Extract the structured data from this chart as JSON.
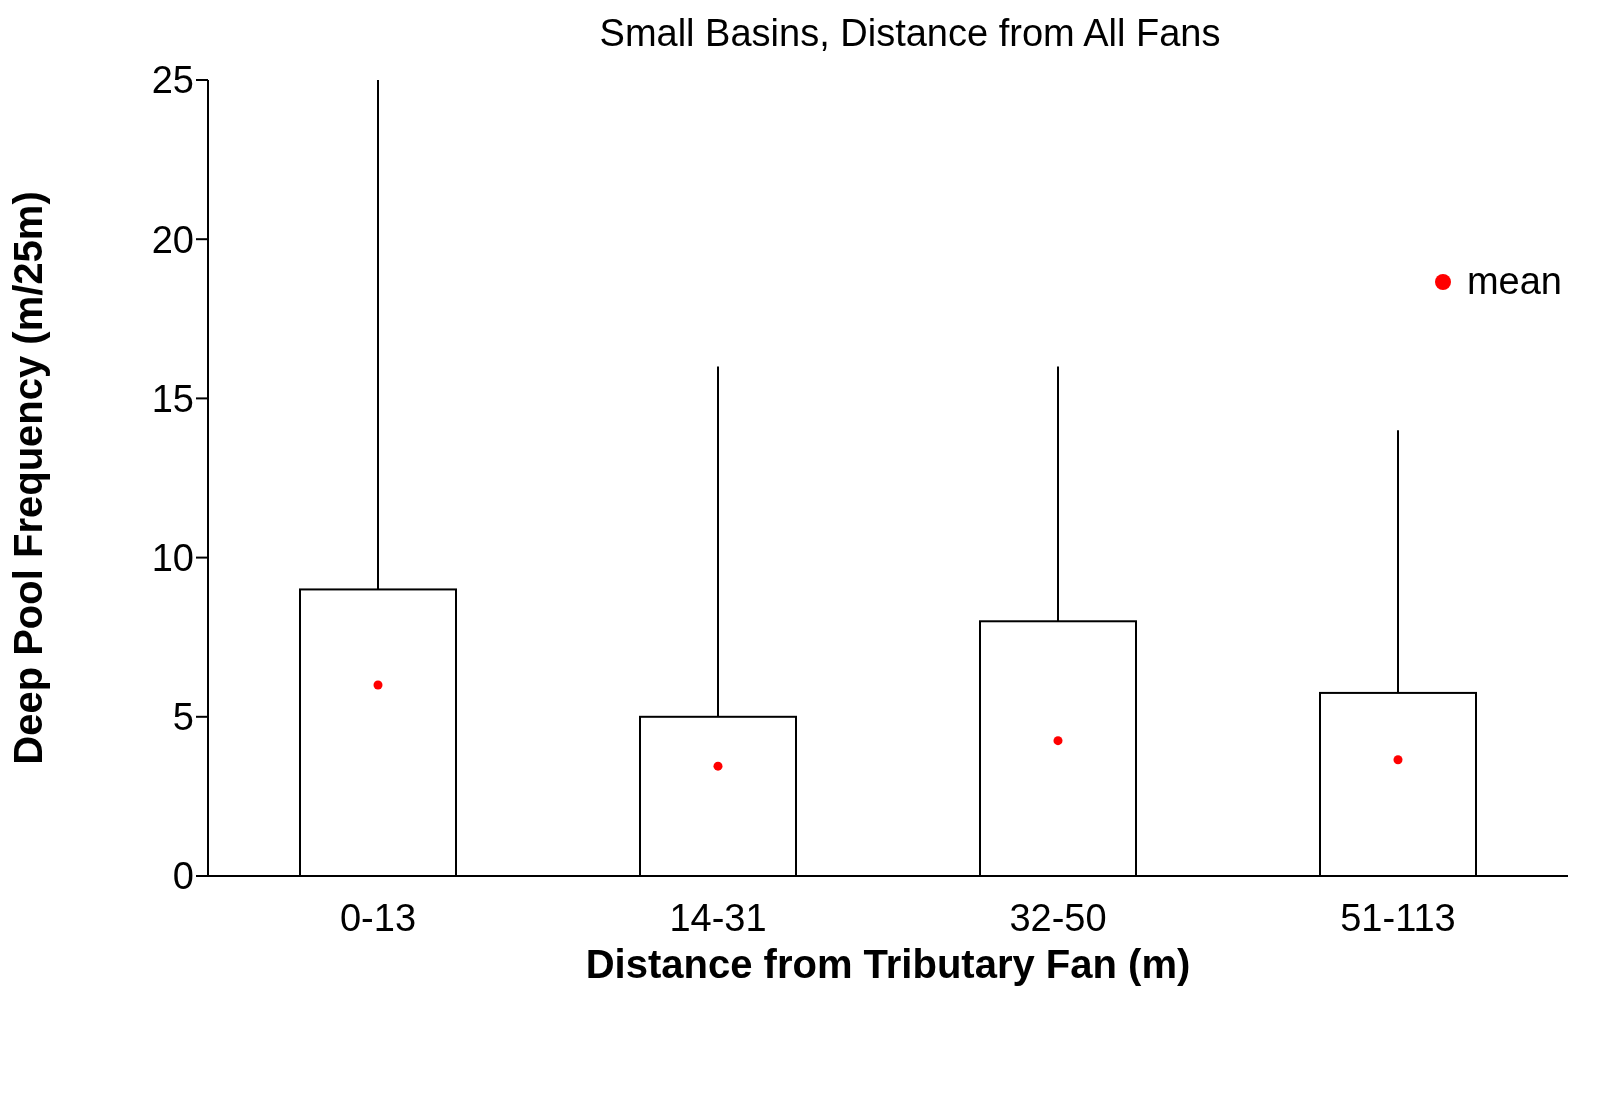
{
  "chart_data": {
    "type": "box",
    "title": "Small Basins, Distance from All Fans",
    "xlabel": "Distance from Tributary Fan (m)",
    "ylabel": "Deep Pool Frequency (m/25m)",
    "categories": [
      "0-13",
      "14-31",
      "32-50",
      "51-113"
    ],
    "ylim": [
      0,
      25
    ],
    "yticks": [
      0,
      5,
      10,
      15,
      20,
      25
    ],
    "grid": false,
    "legend": "top right",
    "series": [
      {
        "color": "#000000",
        "boxes": [
          {
            "low": 0,
            "q1": 0,
            "median": 0,
            "q3": 9,
            "high": 25
          },
          {
            "low": 0,
            "q1": 0,
            "median": 0,
            "q3": 5,
            "high": 16
          },
          {
            "low": 0,
            "q1": 0,
            "median": 0,
            "q3": 8,
            "high": 16
          },
          {
            "low": 0,
            "q1": 0,
            "median": 0,
            "q3": 5.75,
            "high": 14
          }
        ]
      },
      {
        "type": "scatter",
        "name": "mean",
        "color": "#ff0000",
        "marker": "circle",
        "x": [
          "0-13",
          "14-31",
          "32-50",
          "51-113"
        ],
        "values": [
          6,
          3.45,
          4.25,
          3.65
        ]
      }
    ]
  }
}
